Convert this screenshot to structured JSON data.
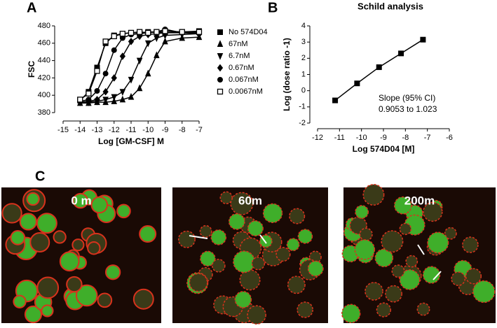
{
  "panel_labels": [
    "A",
    "B",
    "C"
  ],
  "chart_data": [
    {
      "type": "line",
      "y_label": "FSC",
      "x_label": "Log [GM-CSF] M",
      "x": [
        -14,
        -13.5,
        -13,
        -12.5,
        -12,
        -11.5,
        -11,
        -10.5,
        -10,
        -9.5,
        -9,
        -8,
        -7
      ],
      "xlim": [
        -15,
        -7
      ],
      "xticks": [
        -15,
        -14,
        -13,
        -12,
        -11,
        -10,
        -9,
        -8,
        -7
      ],
      "ylim": [
        380,
        480
      ],
      "yticks": [
        380,
        400,
        420,
        440,
        460,
        480
      ],
      "legend": "right",
      "series": [
        {
          "name": "No 574D04",
          "marker": "square",
          "color": "#000000",
          "values": [
            394,
            404,
            432,
            460,
            469,
            471,
            472,
            472,
            473,
            473,
            472,
            473,
            474
          ]
        },
        {
          "name": "67nM",
          "marker": "triangle-up",
          "color": "#000000",
          "values": [
            391,
            391,
            392,
            392,
            393,
            395,
            398,
            408,
            425,
            446,
            462,
            466,
            467
          ]
        },
        {
          "name": "6.7nM",
          "marker": "triangle-down",
          "color": "#000000",
          "values": [
            392,
            392,
            393,
            395,
            398,
            404,
            418,
            440,
            460,
            466,
            469,
            470,
            471
          ]
        },
        {
          "name": "0.67nM",
          "marker": "diamond",
          "color": "#000000",
          "values": [
            392,
            393,
            395,
            404,
            420,
            445,
            462,
            468,
            470,
            471,
            472,
            472,
            472
          ]
        },
        {
          "name": "0.067nM",
          "marker": "circle",
          "color": "#000000",
          "values": [
            393,
            395,
            405,
            425,
            452,
            466,
            470,
            471,
            472,
            473,
            476,
            472,
            471
          ]
        },
        {
          "name": "0.0067nM",
          "marker": "open-square",
          "color": "#000000",
          "values": [
            395,
            402,
            428,
            462,
            468,
            471,
            472,
            473,
            472,
            473,
            474,
            473,
            473
          ]
        }
      ]
    },
    {
      "type": "scatter",
      "title": "Schild analysis",
      "y_label": "Log (dose ratio -1)",
      "x_label": "Log 574D04 [M]",
      "annotation": [
        "Slope (95% CI)",
        "0.9053 to 1.023"
      ],
      "x": [
        -11.2,
        -10.2,
        -9.2,
        -8.2,
        -7.2
      ],
      "xlim": [
        -12,
        -6
      ],
      "xticks": [
        -12,
        -11,
        -10,
        -9,
        -8,
        -7,
        -6
      ],
      "ylim": [
        -2,
        4
      ],
      "yticks": [
        -2,
        -1,
        0,
        1,
        2,
        3,
        4
      ],
      "series": [
        {
          "name": "Schild",
          "marker": "square",
          "color": "#000000",
          "values": [
            -0.6,
            0.45,
            1.45,
            2.3,
            3.15
          ]
        }
      ]
    }
  ],
  "images": [
    {
      "label": "0 m"
    },
    {
      "label": "60m"
    },
    {
      "label": "200m"
    }
  ]
}
